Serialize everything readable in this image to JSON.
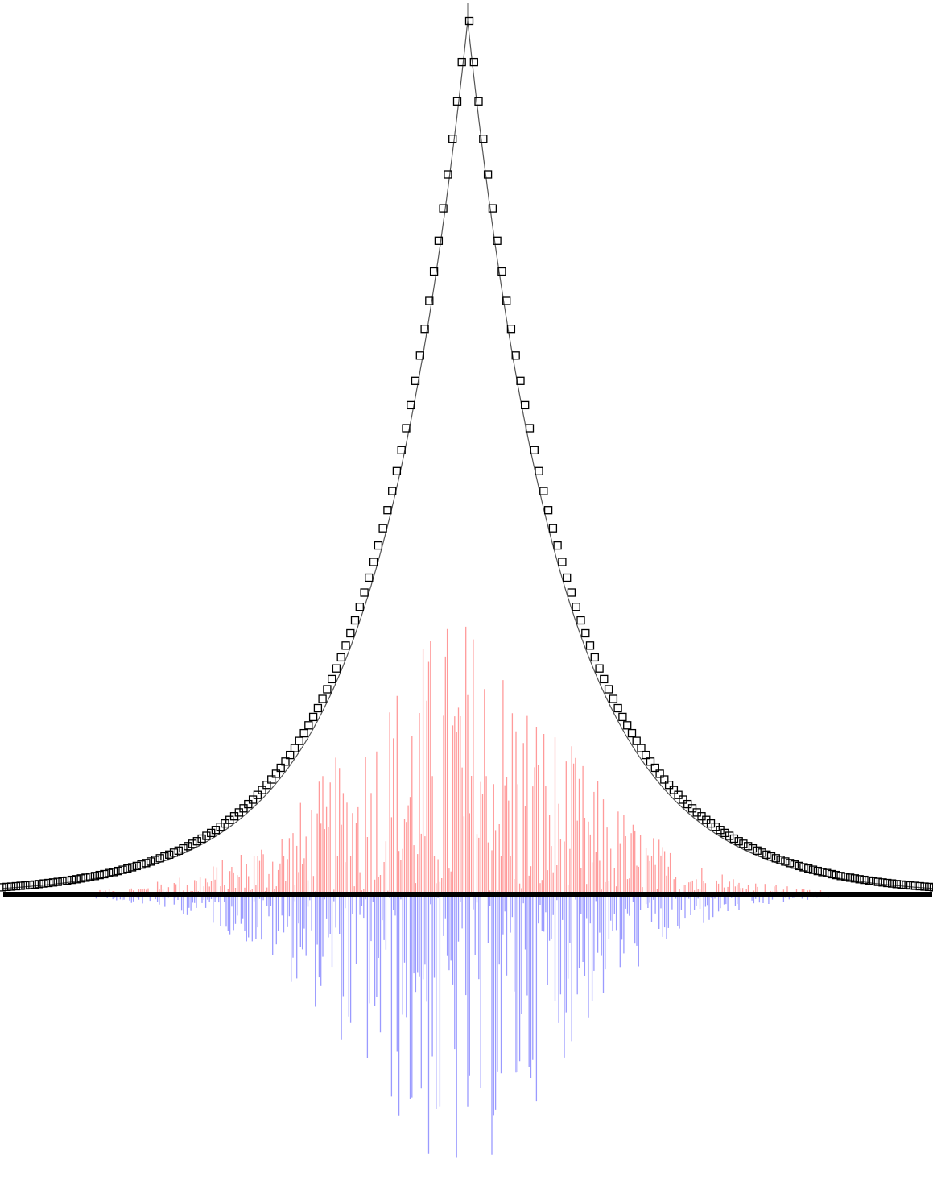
{
  "chart_data": {
    "type": "scatter",
    "title": "",
    "xlabel": "",
    "ylabel": "",
    "grid": false,
    "legend": "none",
    "xlim": [
      -50,
      50
    ],
    "ylim": [
      -0.35,
      1.0
    ],
    "peak": {
      "x": 0,
      "y": 1.0
    },
    "decay_scale": 10,
    "marker": "open-square",
    "series": [
      {
        "kind": "fit-line",
        "function": "exp(-|x|/10)",
        "color": "#555555"
      },
      {
        "kind": "markers",
        "x_step": 0.5,
        "color": "#000000"
      }
    ],
    "residuals": {
      "x_step": 0.2,
      "positive_color": "#ff9a9a",
      "negative_color": "#9a9aff",
      "max_positive": 0.33,
      "max_negative": 0.34
    }
  }
}
